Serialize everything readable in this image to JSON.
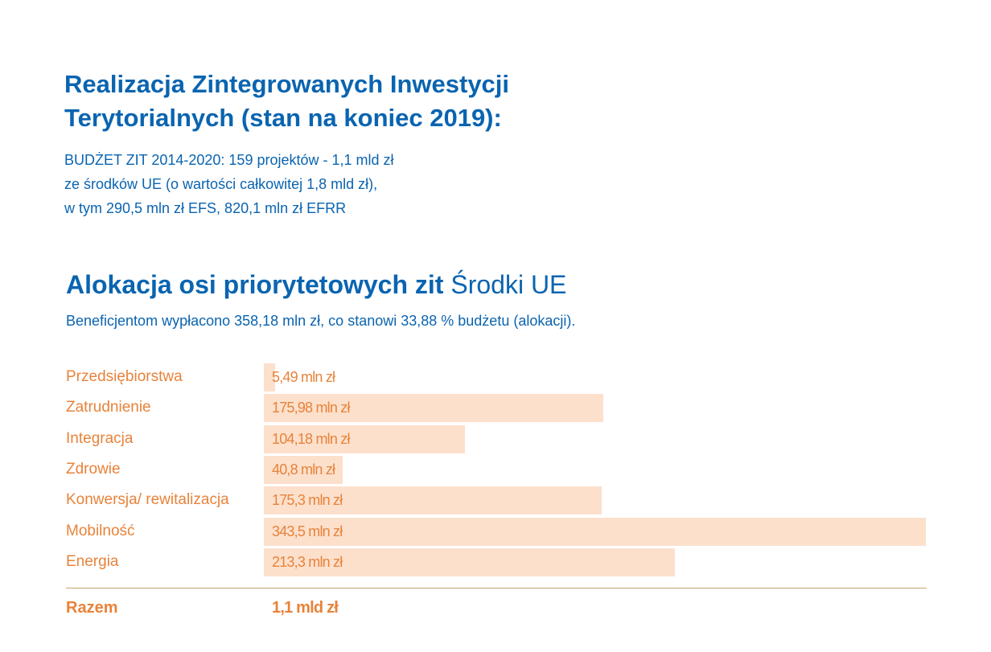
{
  "header": {
    "title_line1": "Realizacja Zintegrowanych Inwestycji",
    "title_line2": "Terytorialnych (stan na koniec 2019):",
    "subtitle_line1": "BUDŻET ZIT 2014-2020: 159 projektów -  1,1 mld zł",
    "subtitle_line2": "ze środków UE (o wartości całkowitej 1,8 mld zł),",
    "subtitle_line3": "w tym  290,5 mln zł EFS, 820,1 mln zł EFRR"
  },
  "section": {
    "title_bold": "Alokacja osi priorytetowych zit",
    "title_light": "Środki UE",
    "description": "Beneficjentom wypłacono 358,18 mln zł, co stanowi 33,88 % budżetu (alokacji)."
  },
  "chart_data": {
    "type": "bar",
    "orientation": "horizontal",
    "categories": [
      "Przedsiębiorstwa",
      "Zatrudnienie",
      "Integracja",
      "Zdrowie",
      "Konwersja/ rewitalizacja",
      "Mobilność",
      "Energia"
    ],
    "values": [
      5.49,
      175.98,
      104.18,
      40.8,
      175.3,
      343.5,
      213.3
    ],
    "value_labels": [
      "5,49 mln zł",
      "175,98 mln zł",
      "104,18 mln zł",
      "40,8 mln zł",
      "175,3 mln zł",
      "343,5 mln zł",
      "213,3 mln zł"
    ],
    "unit": "mln zł",
    "xlim": [
      0,
      343.5
    ],
    "total_label": "Razem",
    "total_value": "1,1 mld zł",
    "bar_color": "#fce0cc",
    "label_color": "#e8833a"
  }
}
